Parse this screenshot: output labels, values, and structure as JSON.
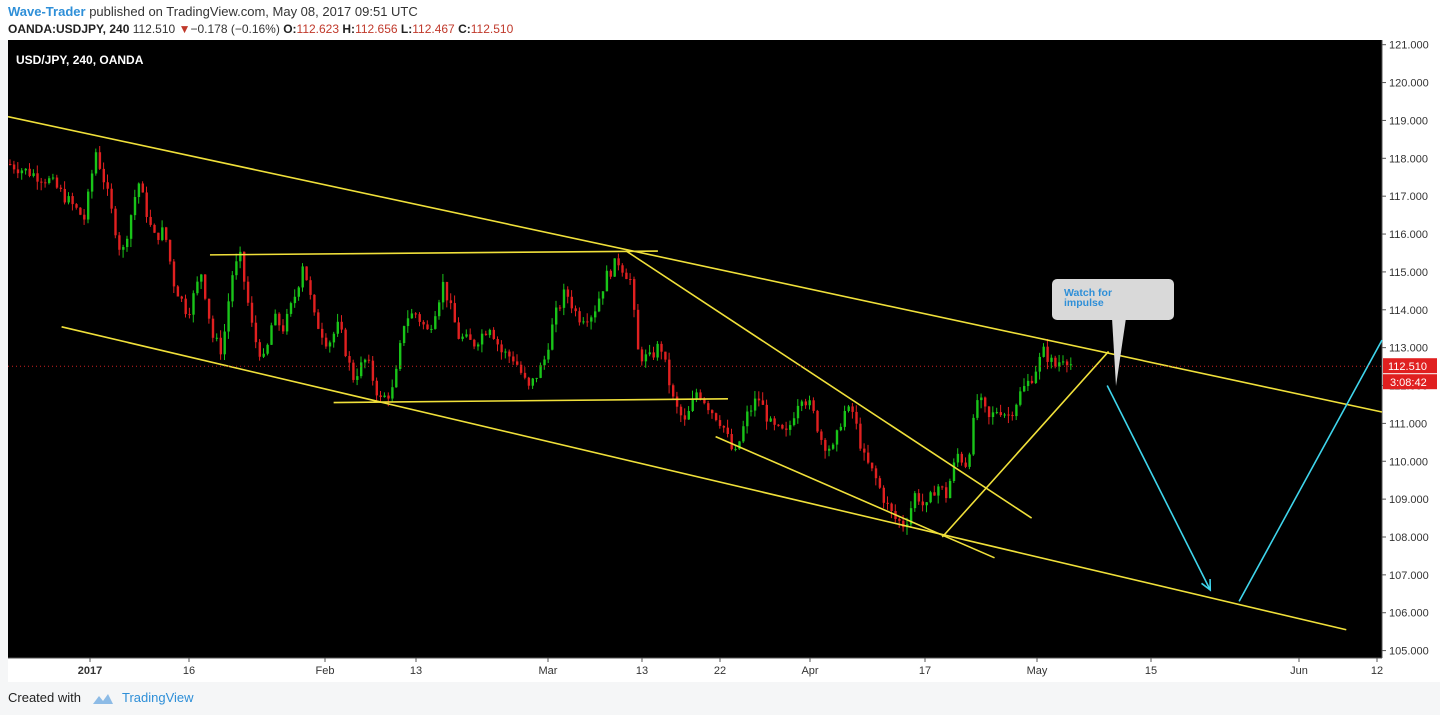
{
  "header": {
    "author": "Wave-Trader",
    "published_text": "published on TradingView.com, May 08, 2017 09:51 UTC",
    "symbol": "OANDA:USDJPY, 240",
    "last": "112.510",
    "change_arrow": "▼",
    "change": "−0.178 (−0.16%)",
    "o_label": "O:",
    "o_value": "112.623",
    "h_label": "H:",
    "h_value": "112.656",
    "l_label": "L:",
    "l_value": "112.467",
    "c_label": "C:",
    "c_value": "112.510"
  },
  "chart": {
    "legend": "USD/JPY, 240, OANDA",
    "price_label": "112.510",
    "countdown_label": "3:08:42",
    "callout_text": "Watch for impulse"
  },
  "chart_data": {
    "type": "candlestick",
    "symbol": "USD/JPY",
    "interval": "240",
    "ylim": [
      105.0,
      121.0
    ],
    "y_ticks": [
      "121.000",
      "120.000",
      "119.000",
      "118.000",
      "117.000",
      "116.000",
      "115.000",
      "114.000",
      "113.000",
      "112.000",
      "111.000",
      "110.000",
      "109.000",
      "108.000",
      "107.000",
      "106.000",
      "105.000"
    ],
    "x_ticks": [
      "2017",
      "16",
      "Feb",
      "13",
      "Mar",
      "13",
      "22",
      "Apr",
      "17",
      "May",
      "15",
      "Jun",
      "12"
    ],
    "price_path": [
      {
        "x": 0.0,
        "y": 117.85
      },
      {
        "x": 0.03,
        "y": 117.4
      },
      {
        "x": 0.055,
        "y": 116.4
      },
      {
        "x": 0.063,
        "y": 118.2
      },
      {
        "x": 0.07,
        "y": 117.3
      },
      {
        "x": 0.082,
        "y": 115.4
      },
      {
        "x": 0.094,
        "y": 117.4
      },
      {
        "x": 0.105,
        "y": 115.9
      },
      {
        "x": 0.113,
        "y": 116.1
      },
      {
        "x": 0.12,
        "y": 114.7
      },
      {
        "x": 0.13,
        "y": 113.9
      },
      {
        "x": 0.14,
        "y": 115.0
      },
      {
        "x": 0.148,
        "y": 113.3
      },
      {
        "x": 0.155,
        "y": 112.9
      },
      {
        "x": 0.162,
        "y": 114.9
      },
      {
        "x": 0.168,
        "y": 115.4
      },
      {
        "x": 0.178,
        "y": 113.3
      },
      {
        "x": 0.186,
        "y": 112.6
      },
      {
        "x": 0.192,
        "y": 113.8
      },
      {
        "x": 0.2,
        "y": 113.5
      },
      {
        "x": 0.21,
        "y": 114.6
      },
      {
        "x": 0.214,
        "y": 115.3
      },
      {
        "x": 0.222,
        "y": 113.8
      },
      {
        "x": 0.232,
        "y": 113.1
      },
      {
        "x": 0.24,
        "y": 113.6
      },
      {
        "x": 0.25,
        "y": 112.2
      },
      {
        "x": 0.26,
        "y": 112.7
      },
      {
        "x": 0.27,
        "y": 111.6
      },
      {
        "x": 0.28,
        "y": 111.9
      },
      {
        "x": 0.288,
        "y": 113.8
      },
      {
        "x": 0.296,
        "y": 113.9
      },
      {
        "x": 0.305,
        "y": 113.4
      },
      {
        "x": 0.316,
        "y": 114.7
      },
      {
        "x": 0.327,
        "y": 113.3
      },
      {
        "x": 0.338,
        "y": 113.1
      },
      {
        "x": 0.35,
        "y": 113.6
      },
      {
        "x": 0.358,
        "y": 112.9
      },
      {
        "x": 0.368,
        "y": 112.7
      },
      {
        "x": 0.378,
        "y": 111.9
      },
      {
        "x": 0.389,
        "y": 112.6
      },
      {
        "x": 0.397,
        "y": 113.8
      },
      {
        "x": 0.405,
        "y": 114.5
      },
      {
        "x": 0.414,
        "y": 113.8
      },
      {
        "x": 0.425,
        "y": 113.9
      },
      {
        "x": 0.435,
        "y": 114.9
      },
      {
        "x": 0.443,
        "y": 115.3
      },
      {
        "x": 0.452,
        "y": 114.8
      },
      {
        "x": 0.458,
        "y": 112.8
      },
      {
        "x": 0.466,
        "y": 112.7
      },
      {
        "x": 0.474,
        "y": 113.1
      },
      {
        "x": 0.484,
        "y": 111.5
      },
      {
        "x": 0.492,
        "y": 111.0
      },
      {
        "x": 0.501,
        "y": 111.9
      },
      {
        "x": 0.51,
        "y": 111.4
      },
      {
        "x": 0.519,
        "y": 111.0
      },
      {
        "x": 0.528,
        "y": 110.1
      },
      {
        "x": 0.537,
        "y": 111.2
      },
      {
        "x": 0.545,
        "y": 111.7
      },
      {
        "x": 0.555,
        "y": 110.9
      },
      {
        "x": 0.566,
        "y": 110.7
      },
      {
        "x": 0.576,
        "y": 111.8
      },
      {
        "x": 0.584,
        "y": 111.4
      },
      {
        "x": 0.592,
        "y": 110.5
      },
      {
        "x": 0.6,
        "y": 110.3
      },
      {
        "x": 0.607,
        "y": 111.3
      },
      {
        "x": 0.614,
        "y": 111.3
      },
      {
        "x": 0.622,
        "y": 110.1
      },
      {
        "x": 0.63,
        "y": 109.6
      },
      {
        "x": 0.638,
        "y": 108.9
      },
      {
        "x": 0.644,
        "y": 108.5
      },
      {
        "x": 0.652,
        "y": 108.3
      },
      {
        "x": 0.66,
        "y": 109.2
      },
      {
        "x": 0.667,
        "y": 108.7
      },
      {
        "x": 0.675,
        "y": 109.4
      },
      {
        "x": 0.682,
        "y": 109.1
      },
      {
        "x": 0.69,
        "y": 110.2
      },
      {
        "x": 0.697,
        "y": 109.9
      },
      {
        "x": 0.705,
        "y": 111.7
      },
      {
        "x": 0.713,
        "y": 111.1
      },
      {
        "x": 0.72,
        "y": 111.4
      },
      {
        "x": 0.728,
        "y": 111.2
      },
      {
        "x": 0.736,
        "y": 111.8
      },
      {
        "x": 0.744,
        "y": 112.2
      },
      {
        "x": 0.753,
        "y": 112.9
      },
      {
        "x": 0.761,
        "y": 112.5
      },
      {
        "x": 0.768,
        "y": 112.8
      },
      {
        "x": 0.774,
        "y": 112.51
      }
    ],
    "trendlines": [
      {
        "x1": 0.0,
        "y1": 119.1,
        "x2": 1.0,
        "y2": 111.3
      },
      {
        "x1": 0.039,
        "y1": 113.55,
        "x2": 0.974,
        "y2": 105.55
      },
      {
        "x1": 0.147,
        "y1": 115.45,
        "x2": 0.473,
        "y2": 115.55
      },
      {
        "x1": 0.237,
        "y1": 111.55,
        "x2": 0.524,
        "y2": 111.65
      },
      {
        "x1": 0.45,
        "y1": 115.55,
        "x2": 0.745,
        "y2": 108.5
      },
      {
        "x1": 0.515,
        "y1": 110.65,
        "x2": 0.718,
        "y2": 107.45
      },
      {
        "x1": 0.68,
        "y1": 108.0,
        "x2": 0.801,
        "y2": 112.9
      }
    ],
    "projection_lines": [
      {
        "x1": 0.8,
        "y1": 112.0,
        "x2": 0.875,
        "y2": 106.6
      },
      {
        "x1": 0.896,
        "y1": 106.3,
        "x2": 1.0,
        "y2": 113.2
      }
    ],
    "annotation": "Watch for impulse",
    "colors": {
      "up": "#19c419",
      "down": "#e02020",
      "trendline": "#f0e03a",
      "projection": "#3fd5ec",
      "background": "#000000",
      "price_tag": "#e02020"
    }
  }
}
